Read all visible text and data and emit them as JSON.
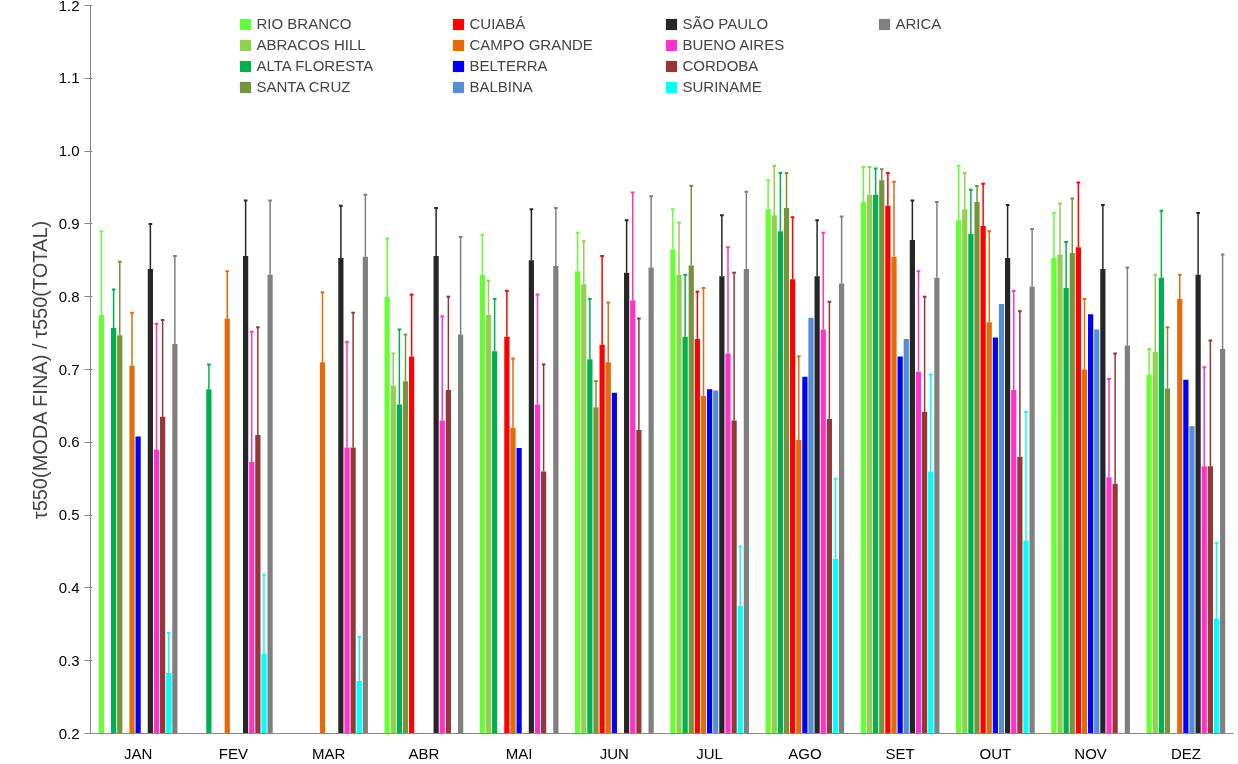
{
  "chart_data": {
    "type": "bar",
    "ylabel": "τ550(MODA FINA) / τ550(TOTAL)",
    "categories": [
      "JAN",
      "FEV",
      "MAR",
      "ABR",
      "MAI",
      "JUN",
      "JUL",
      "AGO",
      "SET",
      "OUT",
      "NOV",
      "DEZ"
    ],
    "ylim": [
      0.2,
      1.2
    ],
    "yticks": [
      {
        "value": 0.2,
        "label": "0.2"
      },
      {
        "value": 0.3,
        "label": "0.3"
      },
      {
        "value": 0.4,
        "label": "0.4"
      },
      {
        "value": 0.5,
        "label": "0.5"
      },
      {
        "value": 0.6,
        "label": "0.6"
      },
      {
        "value": 0.7,
        "label": "0.7"
      },
      {
        "value": 0.8,
        "label": "0.8"
      },
      {
        "value": 0.9,
        "label": "0.9"
      },
      {
        "value": 1.0,
        "label": "1.0"
      },
      {
        "value": 1.1,
        "label": "1.1"
      },
      {
        "value": 1.2,
        "label": "1.2"
      }
    ],
    "grid": false,
    "legend": "top",
    "series": [
      {
        "name": "RIO BRANCO",
        "color": "#66ff33",
        "values": [
          0.775,
          null,
          null,
          0.8,
          0.83,
          0.835,
          0.865,
          0.92,
          0.93,
          0.905,
          0.853,
          0.693
        ],
        "errors": [
          [
            0.775,
            0.89
          ],
          null,
          null,
          [
            0.8,
            0.88
          ],
          [
            0.83,
            0.885
          ],
          [
            0.835,
            0.888
          ],
          [
            0.865,
            0.92
          ],
          [
            0.92,
            0.96
          ],
          [
            0.93,
            0.978
          ],
          [
            0.905,
            0.98
          ],
          [
            0.853,
            0.915
          ],
          [
            0.693,
            0.728
          ]
        ]
      },
      {
        "name": "ABRACOS HILL",
        "color": "#92d050",
        "values": [
          null,
          null,
          null,
          0.678,
          0.775,
          0.817,
          0.83,
          0.912,
          0.94,
          0.92,
          0.858,
          0.724
        ],
        "errors": [
          null,
          null,
          null,
          [
            0.678,
            0.722
          ],
          [
            0.775,
            0.822
          ],
          [
            0.817,
            0.876
          ],
          [
            0.83,
            0.902
          ],
          [
            0.912,
            0.98
          ],
          [
            0.94,
            0.978
          ],
          [
            0.92,
            0.97
          ],
          [
            0.858,
            0.928
          ],
          [
            0.724,
            0.83
          ]
        ]
      },
      {
        "name": "ALTA FLORESTA",
        "color": "#00b050",
        "values": [
          0.757,
          0.673,
          null,
          0.652,
          0.725,
          0.714,
          0.745,
          0.89,
          0.94,
          0.886,
          0.812,
          0.826
        ],
        "errors": [
          [
            0.757,
            0.81
          ],
          [
            0.673,
            0.707
          ],
          null,
          [
            0.652,
            0.755
          ],
          [
            0.725,
            0.797
          ],
          [
            0.714,
            0.797
          ],
          [
            0.745,
            0.83
          ],
          [
            0.89,
            0.97
          ],
          [
            0.94,
            0.976
          ],
          [
            0.886,
            0.947
          ],
          [
            0.812,
            0.875
          ],
          [
            0.826,
            0.918
          ]
        ]
      },
      {
        "name": "SANTA CRUZ",
        "color": "#77933c",
        "values": [
          0.747,
          null,
          null,
          0.684,
          null,
          0.648,
          0.843,
          0.922,
          0.96,
          0.93,
          0.86,
          0.674
        ],
        "errors": [
          [
            0.747,
            0.848
          ],
          null,
          null,
          [
            0.684,
            0.748
          ],
          null,
          [
            0.648,
            0.684
          ],
          [
            0.843,
            0.952
          ],
          [
            0.922,
            0.97
          ],
          [
            0.96,
            0.975
          ],
          [
            0.93,
            0.952
          ],
          [
            0.86,
            0.935
          ],
          [
            0.674,
            0.758
          ]
        ]
      },
      {
        "name": "CUIABÁ",
        "color": "#ff0000",
        "values": [
          null,
          null,
          null,
          0.718,
          0.745,
          0.734,
          0.742,
          0.824,
          0.925,
          0.897,
          0.868,
          null
        ],
        "errors": [
          null,
          null,
          null,
          [
            0.718,
            0.803
          ],
          [
            0.745,
            0.808
          ],
          [
            0.734,
            0.856
          ],
          [
            0.742,
            0.807
          ],
          [
            0.824,
            0.909
          ],
          [
            0.925,
            0.97
          ],
          [
            0.897,
            0.955
          ],
          [
            0.868,
            0.957
          ],
          null
        ]
      },
      {
        "name": "CAMPO GRANDE",
        "color": "#e36c09",
        "values": [
          0.705,
          0.77,
          0.71,
          null,
          0.62,
          0.71,
          0.664,
          0.603,
          0.855,
          0.765,
          0.7,
          0.797
        ],
        "errors": [
          [
            0.705,
            0.778
          ],
          [
            0.77,
            0.835
          ],
          [
            0.71,
            0.806
          ],
          null,
          [
            0.62,
            0.715
          ],
          [
            0.71,
            0.792
          ],
          [
            0.664,
            0.812
          ],
          [
            0.603,
            0.718
          ],
          [
            0.855,
            0.958
          ],
          [
            0.765,
            0.89
          ],
          [
            0.7,
            0.797
          ],
          [
            0.797,
            0.83
          ]
        ]
      },
      {
        "name": "BELTERRA",
        "color": "#0000ff",
        "values": [
          0.608,
          null,
          null,
          null,
          0.592,
          0.668,
          0.673,
          0.69,
          0.718,
          0.744,
          0.776,
          0.686
        ]
      },
      {
        "name": "BALBINA",
        "color": "#558ed5",
        "values": [
          null,
          null,
          null,
          null,
          null,
          null,
          0.671,
          0.771,
          0.742,
          0.79,
          0.755,
          0.622
        ]
      },
      {
        "name": "SÃO PAULO",
        "color": "#262626",
        "values": [
          0.838,
          0.856,
          0.853,
          0.856,
          0.85,
          0.833,
          0.828,
          0.828,
          0.878,
          0.853,
          0.838,
          0.83
        ],
        "errors": [
          [
            0.838,
            0.9
          ],
          [
            0.856,
            0.932
          ],
          [
            0.853,
            0.925
          ],
          [
            0.856,
            0.922
          ],
          [
            0.85,
            0.92
          ],
          [
            0.833,
            0.905
          ],
          [
            0.828,
            0.912
          ],
          [
            0.828,
            0.905
          ],
          [
            0.878,
            0.932
          ],
          [
            0.853,
            0.926
          ],
          [
            0.838,
            0.926
          ],
          [
            0.83,
            0.915
          ]
        ]
      },
      {
        "name": "BUENO AIRES",
        "color": "#ff33cc",
        "values": [
          0.59,
          0.573,
          0.593,
          0.63,
          0.652,
          0.795,
          0.722,
          0.755,
          0.697,
          0.672,
          0.552,
          0.567
        ],
        "errors": [
          [
            0.59,
            0.763
          ],
          [
            0.573,
            0.752
          ],
          [
            0.593,
            0.738
          ],
          [
            0.63,
            0.773
          ],
          [
            0.652,
            0.803
          ],
          [
            0.795,
            0.943
          ],
          [
            0.722,
            0.868
          ],
          [
            0.755,
            0.888
          ],
          [
            0.697,
            0.835
          ],
          [
            0.672,
            0.808
          ],
          [
            0.552,
            0.687
          ],
          [
            0.567,
            0.703
          ]
        ]
      },
      {
        "name": "CORDOBA",
        "color": "#953735",
        "values": [
          0.635,
          0.61,
          0.593,
          0.672,
          0.56,
          0.617,
          0.63,
          0.632,
          0.642,
          0.58,
          0.543,
          0.567
        ],
        "errors": [
          [
            0.635,
            0.768
          ],
          [
            0.61,
            0.758
          ],
          [
            0.593,
            0.778
          ],
          [
            0.672,
            0.8
          ],
          [
            0.56,
            0.707
          ],
          [
            0.617,
            0.77
          ],
          [
            0.63,
            0.833
          ],
          [
            0.632,
            0.793
          ],
          [
            0.642,
            0.8
          ],
          [
            0.58,
            0.78
          ],
          [
            0.543,
            0.722
          ],
          [
            0.567,
            0.74
          ]
        ]
      },
      {
        "name": "SURINAME",
        "color": "#00ffff",
        "values": [
          0.283,
          0.31,
          0.272,
          null,
          null,
          null,
          0.375,
          0.44,
          0.56,
          0.465,
          null,
          0.358
        ],
        "errors": [
          [
            0.283,
            0.338
          ],
          [
            0.31,
            0.418
          ],
          [
            0.272,
            0.333
          ],
          null,
          null,
          null,
          [
            0.375,
            0.457
          ],
          [
            0.44,
            0.55
          ],
          [
            0.56,
            0.693
          ],
          [
            0.465,
            0.642
          ],
          null,
          [
            0.358,
            0.462
          ]
        ]
      },
      {
        "name": "ARICA",
        "color": "#808080",
        "values": [
          0.735,
          0.83,
          0.855,
          0.748,
          0.842,
          0.84,
          0.838,
          0.818,
          0.826,
          0.814,
          0.733,
          0.728
        ],
        "errors": [
          [
            0.735,
            0.856
          ],
          [
            0.83,
            0.932
          ],
          [
            0.855,
            0.94
          ],
          [
            0.748,
            0.882
          ],
          [
            0.842,
            0.922
          ],
          [
            0.84,
            0.938
          ],
          [
            0.838,
            0.944
          ],
          [
            0.818,
            0.91
          ],
          [
            0.826,
            0.93
          ],
          [
            0.814,
            0.893
          ],
          [
            0.733,
            0.84
          ],
          [
            0.728,
            0.858
          ]
        ]
      }
    ]
  }
}
